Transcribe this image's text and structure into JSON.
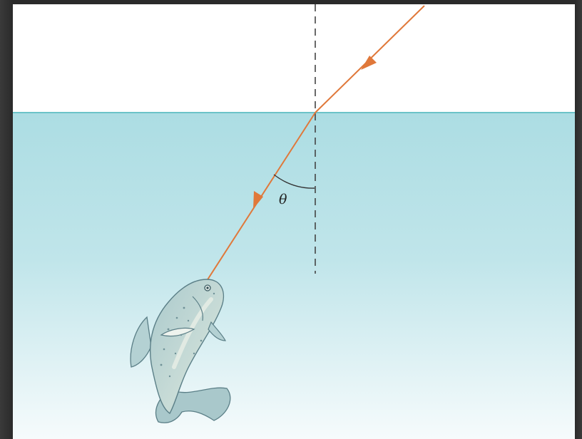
{
  "diagram": {
    "angle_label": "θ",
    "colors": {
      "air": "#ffffff",
      "water_top": "#acdde3",
      "water_bottom": "#f4fbfc",
      "surface_line": "#6cc3c8",
      "ray": "#e0783a",
      "normal_line": "#444444",
      "fish_body": "#b9d3d5",
      "fish_outline": "#5b7f87"
    },
    "elements": [
      "air",
      "water",
      "water-surface-line",
      "normal-line",
      "incident-ray",
      "refracted-ray",
      "angle-arc",
      "fish"
    ]
  }
}
